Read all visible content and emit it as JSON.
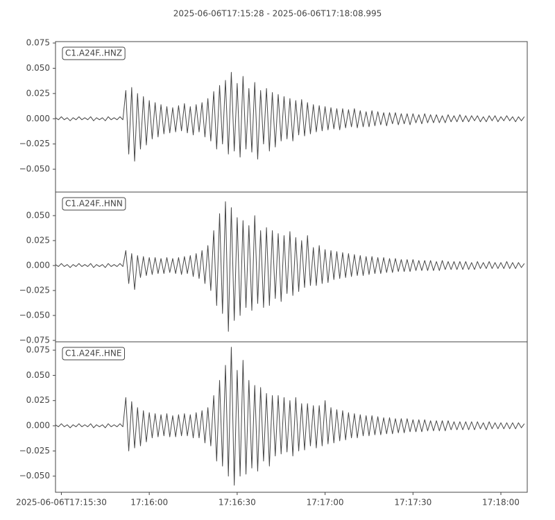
{
  "chart_data": [
    {
      "type": "line",
      "title": "2025-06-06T17:15:28  -  2025-06-06T17:18:08.995",
      "x": [
        0,
        1,
        2,
        3,
        4,
        5,
        6,
        7,
        8,
        9,
        10,
        11,
        12,
        13,
        14,
        15,
        16,
        17,
        18,
        19,
        20,
        21,
        22,
        23,
        24,
        25,
        26,
        27,
        28,
        29,
        30,
        31,
        32,
        33,
        34,
        35,
        36,
        37,
        38,
        39,
        40,
        41,
        42,
        43,
        44,
        45,
        46,
        47,
        48,
        49,
        50,
        51,
        52,
        53,
        54,
        55,
        56,
        57,
        58,
        59,
        60,
        61,
        62,
        63,
        64,
        65,
        66,
        67,
        68,
        69,
        70,
        71,
        72,
        73,
        74,
        75,
        76,
        77,
        78,
        79,
        80,
        81,
        82,
        83,
        84,
        85,
        86,
        87,
        88,
        89,
        90,
        91,
        92,
        93,
        94,
        95,
        96,
        97,
        98,
        99,
        100,
        101,
        102,
        103,
        104,
        105,
        106,
        107,
        108,
        109,
        110,
        111,
        112,
        113,
        114,
        115,
        116,
        117,
        118,
        119,
        120,
        121,
        122,
        123,
        124,
        125,
        126,
        127,
        128,
        129,
        130,
        131,
        132,
        133,
        134,
        135,
        136,
        137,
        138,
        139,
        140,
        141,
        142,
        143,
        144,
        145,
        146,
        147,
        148,
        149,
        150,
        151,
        152,
        153,
        154,
        155,
        156,
        157,
        158,
        159,
        160
      ],
      "series": [
        {
          "name": "C1.A24F..HNZ",
          "color": "#454545",
          "values": [
            0.001,
            -0.001,
            0.002,
            -0.001,
            0.001,
            -0.002,
            0.001,
            -0.001,
            0.002,
            -0.001,
            0.001,
            -0.001,
            0.002,
            -0.002,
            0.001,
            -0.001,
            0.001,
            -0.002,
            0.002,
            -0.001,
            0.001,
            -0.001,
            0.002,
            -0.001,
            0.028,
            -0.035,
            0.031,
            -0.042,
            0.025,
            -0.03,
            0.022,
            -0.026,
            0.018,
            -0.02,
            0.016,
            -0.018,
            0.014,
            -0.015,
            0.012,
            -0.014,
            0.011,
            -0.013,
            0.013,
            -0.012,
            0.015,
            -0.014,
            0.012,
            -0.016,
            0.014,
            -0.013,
            0.016,
            -0.018,
            0.02,
            -0.022,
            0.027,
            -0.03,
            0.033,
            -0.025,
            0.038,
            -0.035,
            0.046,
            -0.032,
            0.035,
            -0.038,
            0.042,
            -0.03,
            0.03,
            -0.033,
            0.036,
            -0.04,
            0.028,
            -0.025,
            0.03,
            -0.032,
            0.026,
            -0.028,
            0.024,
            -0.022,
            0.022,
            -0.02,
            0.02,
            -0.022,
            0.018,
            -0.016,
            0.019,
            -0.017,
            0.016,
            -0.015,
            0.014,
            -0.013,
            0.013,
            -0.012,
            0.012,
            -0.011,
            0.011,
            -0.01,
            0.01,
            -0.011,
            0.01,
            -0.009,
            0.009,
            -0.008,
            0.01,
            -0.009,
            0.008,
            -0.008,
            0.007,
            -0.008,
            0.008,
            -0.007,
            0.007,
            -0.006,
            0.006,
            -0.007,
            0.006,
            -0.005,
            0.006,
            -0.006,
            0.005,
            -0.005,
            0.005,
            -0.006,
            0.005,
            -0.004,
            0.004,
            -0.005,
            0.005,
            -0.004,
            0.004,
            -0.004,
            0.004,
            -0.004,
            0.003,
            -0.004,
            0.004,
            -0.003,
            0.003,
            -0.003,
            0.004,
            -0.003,
            0.003,
            -0.003,
            0.003,
            -0.002,
            0.003,
            -0.003,
            0.002,
            -0.003,
            0.003,
            -0.002,
            0.003,
            -0.003,
            0.002,
            -0.002,
            0.003,
            -0.002,
            0.002,
            -0.003,
            0.002,
            -0.002,
            0.002
          ]
        }
      ],
      "xlim": [
        0,
        160.995
      ],
      "ylim": [
        -0.0726,
        0.0764
      ],
      "yticks": [
        {
          "value": -0.05,
          "label": "−0.050"
        },
        {
          "value": -0.025,
          "label": "−0.025"
        },
        {
          "value": 0,
          "label": "0.000"
        },
        0.025,
        {
          "value": 0.05,
          "label": "0.050"
        },
        0.075
      ]
    },
    {
      "type": "line",
      "x": [
        0,
        1,
        2,
        3,
        4,
        5,
        6,
        7,
        8,
        9,
        10,
        11,
        12,
        13,
        14,
        15,
        16,
        17,
        18,
        19,
        20,
        21,
        22,
        23,
        24,
        25,
        26,
        27,
        28,
        29,
        30,
        31,
        32,
        33,
        34,
        35,
        36,
        37,
        38,
        39,
        40,
        41,
        42,
        43,
        44,
        45,
        46,
        47,
        48,
        49,
        50,
        51,
        52,
        53,
        54,
        55,
        56,
        57,
        58,
        59,
        60,
        61,
        62,
        63,
        64,
        65,
        66,
        67,
        68,
        69,
        70,
        71,
        72,
        73,
        74,
        75,
        76,
        77,
        78,
        79,
        80,
        81,
        82,
        83,
        84,
        85,
        86,
        87,
        88,
        89,
        90,
        91,
        92,
        93,
        94,
        95,
        96,
        97,
        98,
        99,
        100,
        101,
        102,
        103,
        104,
        105,
        106,
        107,
        108,
        109,
        110,
        111,
        112,
        113,
        114,
        115,
        116,
        117,
        118,
        119,
        120,
        121,
        122,
        123,
        124,
        125,
        126,
        127,
        128,
        129,
        130,
        131,
        132,
        133,
        134,
        135,
        136,
        137,
        138,
        139,
        140,
        141,
        142,
        143,
        144,
        145,
        146,
        147,
        148,
        149,
        150,
        151,
        152,
        153,
        154,
        155,
        156,
        157,
        158,
        159,
        160
      ],
      "series": [
        {
          "name": "C1.A24F..HNN",
          "color": "#454545",
          "values": [
            0.001,
            -0.001,
            0.002,
            -0.001,
            0.001,
            -0.002,
            0.001,
            -0.001,
            0.002,
            -0.001,
            0.001,
            -0.001,
            0.002,
            -0.002,
            0.001,
            -0.001,
            0.001,
            -0.002,
            0.002,
            -0.001,
            0.001,
            -0.001,
            0.002,
            -0.001,
            0.015,
            -0.018,
            0.012,
            -0.024,
            0.01,
            -0.012,
            0.009,
            -0.01,
            0.008,
            -0.009,
            0.008,
            -0.008,
            0.007,
            -0.008,
            0.008,
            -0.007,
            0.007,
            -0.008,
            0.008,
            -0.009,
            0.009,
            -0.008,
            0.01,
            -0.011,
            0.012,
            -0.013,
            0.015,
            -0.018,
            0.02,
            -0.025,
            0.035,
            -0.04,
            0.052,
            -0.048,
            0.064,
            -0.066,
            0.058,
            -0.055,
            0.048,
            -0.05,
            0.045,
            -0.042,
            0.04,
            -0.045,
            0.05,
            -0.038,
            0.035,
            -0.042,
            0.038,
            -0.04,
            0.035,
            -0.033,
            0.032,
            -0.036,
            0.03,
            -0.028,
            0.034,
            -0.03,
            0.028,
            -0.026,
            0.025,
            -0.022,
            0.03,
            -0.02,
            0.018,
            -0.02,
            0.02,
            -0.018,
            0.016,
            -0.017,
            0.015,
            -0.014,
            0.014,
            -0.013,
            0.013,
            -0.012,
            0.012,
            -0.011,
            0.011,
            -0.01,
            0.01,
            -0.01,
            0.009,
            -0.009,
            0.009,
            -0.008,
            0.008,
            -0.008,
            0.008,
            -0.007,
            0.007,
            -0.007,
            0.007,
            -0.006,
            0.006,
            -0.006,
            0.006,
            -0.006,
            0.006,
            -0.005,
            0.005,
            -0.005,
            0.005,
            -0.005,
            0.005,
            -0.005,
            0.004,
            -0.005,
            0.005,
            -0.004,
            0.004,
            -0.004,
            0.004,
            -0.004,
            0.004,
            -0.004,
            0.004,
            -0.004,
            0.003,
            -0.004,
            0.004,
            -0.003,
            0.003,
            -0.003,
            0.004,
            -0.003,
            0.003,
            -0.003,
            0.003,
            -0.003,
            0.004,
            -0.003,
            0.003,
            -0.003,
            0.003,
            -0.002,
            0.002
          ]
        }
      ],
      "xlim": [
        0,
        160.995
      ],
      "ylim": [
        -0.0764,
        0.0736
      ],
      "yticks": [
        {
          "value": -0.075,
          "label": "−0.075"
        },
        {
          "value": -0.05,
          "label": "−0.050"
        },
        {
          "value": -0.025,
          "label": "−0.025"
        },
        {
          "value": 0,
          "label": "0.000"
        },
        0.025,
        {
          "value": 0.05,
          "label": "0.050"
        }
      ]
    },
    {
      "type": "line",
      "x": [
        0,
        1,
        2,
        3,
        4,
        5,
        6,
        7,
        8,
        9,
        10,
        11,
        12,
        13,
        14,
        15,
        16,
        17,
        18,
        19,
        20,
        21,
        22,
        23,
        24,
        25,
        26,
        27,
        28,
        29,
        30,
        31,
        32,
        33,
        34,
        35,
        36,
        37,
        38,
        39,
        40,
        41,
        42,
        43,
        44,
        45,
        46,
        47,
        48,
        49,
        50,
        51,
        52,
        53,
        54,
        55,
        56,
        57,
        58,
        59,
        60,
        61,
        62,
        63,
        64,
        65,
        66,
        67,
        68,
        69,
        70,
        71,
        72,
        73,
        74,
        75,
        76,
        77,
        78,
        79,
        80,
        81,
        82,
        83,
        84,
        85,
        86,
        87,
        88,
        89,
        90,
        91,
        92,
        93,
        94,
        95,
        96,
        97,
        98,
        99,
        100,
        101,
        102,
        103,
        104,
        105,
        106,
        107,
        108,
        109,
        110,
        111,
        112,
        113,
        114,
        115,
        116,
        117,
        118,
        119,
        120,
        121,
        122,
        123,
        124,
        125,
        126,
        127,
        128,
        129,
        130,
        131,
        132,
        133,
        134,
        135,
        136,
        137,
        138,
        139,
        140,
        141,
        142,
        143,
        144,
        145,
        146,
        147,
        148,
        149,
        150,
        151,
        152,
        153,
        154,
        155,
        156,
        157,
        158,
        159,
        160
      ],
      "series": [
        {
          "name": "C1.A24F..HNE",
          "color": "#454545",
          "values": [
            0.001,
            -0.001,
            0.002,
            -0.001,
            0.001,
            -0.002,
            0.001,
            -0.001,
            0.002,
            -0.001,
            0.001,
            -0.001,
            0.002,
            -0.002,
            0.001,
            -0.001,
            0.001,
            -0.002,
            0.002,
            -0.001,
            0.001,
            -0.001,
            0.002,
            -0.001,
            0.028,
            -0.025,
            0.024,
            -0.022,
            0.018,
            -0.02,
            0.015,
            -0.016,
            0.013,
            -0.012,
            0.012,
            -0.011,
            0.011,
            -0.01,
            0.012,
            -0.011,
            0.01,
            -0.011,
            0.011,
            -0.01,
            0.012,
            -0.01,
            0.011,
            -0.012,
            0.013,
            -0.012,
            0.015,
            -0.017,
            0.018,
            -0.02,
            0.03,
            -0.035,
            0.045,
            -0.04,
            0.06,
            -0.05,
            0.078,
            -0.059,
            0.055,
            -0.05,
            0.065,
            -0.048,
            0.045,
            -0.042,
            0.04,
            -0.045,
            0.038,
            -0.035,
            0.032,
            -0.04,
            0.03,
            -0.03,
            0.03,
            -0.028,
            0.028,
            -0.026,
            0.025,
            -0.03,
            0.028,
            -0.025,
            0.022,
            -0.024,
            0.022,
            -0.02,
            0.02,
            -0.022,
            0.02,
            -0.02,
            0.025,
            -0.018,
            0.018,
            -0.017,
            0.016,
            -0.015,
            0.015,
            -0.014,
            0.013,
            -0.012,
            0.012,
            -0.012,
            0.011,
            -0.01,
            0.01,
            -0.01,
            0.01,
            -0.009,
            0.009,
            -0.009,
            0.008,
            -0.008,
            0.008,
            -0.008,
            0.007,
            -0.007,
            0.007,
            -0.007,
            0.007,
            -0.006,
            0.006,
            -0.006,
            0.006,
            -0.006,
            0.006,
            -0.005,
            0.005,
            -0.005,
            0.005,
            -0.005,
            0.005,
            -0.005,
            0.005,
            -0.004,
            0.004,
            -0.004,
            0.004,
            -0.004,
            0.004,
            -0.004,
            0.004,
            -0.004,
            0.004,
            -0.003,
            0.003,
            -0.004,
            0.004,
            -0.003,
            0.003,
            -0.003,
            0.003,
            -0.003,
            0.003,
            -0.003,
            0.003,
            -0.003,
            0.003,
            -0.002,
            0.002
          ]
        }
      ],
      "xlim": [
        0,
        160.995
      ],
      "ylim": [
        -0.066,
        0.0833
      ],
      "yticks": [
        {
          "value": -0.05,
          "label": "−0.050"
        },
        {
          "value": -0.025,
          "label": "−0.025"
        },
        {
          "value": 0,
          "label": "0.000"
        },
        0.025,
        {
          "value": 0.05,
          "label": "0.050"
        },
        0.075
      ],
      "xticks": [
        {
          "value": 2,
          "label": "2025-06-06T17:15:30"
        },
        {
          "value": 32,
          "label": "17:16:00"
        },
        {
          "value": 62,
          "label": "17:16:30"
        },
        {
          "value": 92,
          "label": "17:17:00"
        },
        {
          "value": 122,
          "label": "17:17:30"
        },
        {
          "value": 152,
          "label": "17:18:00"
        }
      ]
    }
  ]
}
